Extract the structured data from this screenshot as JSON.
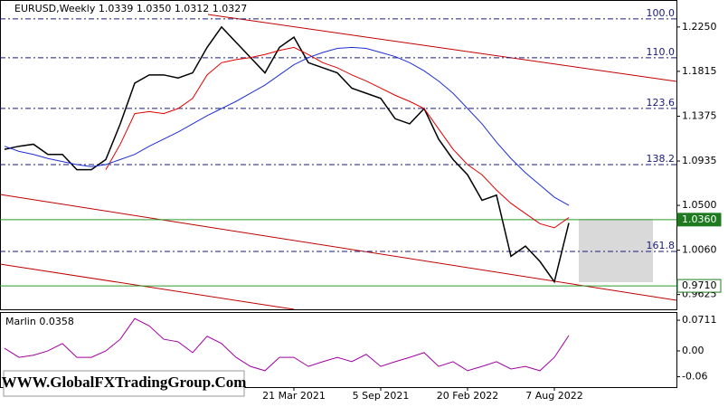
{
  "chart_data": [
    {
      "type": "line",
      "title": "EURUSD,Weekly  1.0339 1.0350 1.0312 1.0327",
      "categories": [
        null,
        null,
        null,
        null,
        null,
        null,
        null,
        null,
        null,
        null,
        null,
        null,
        null,
        null,
        null,
        null,
        null,
        null,
        null,
        null,
        "21 Mar 2021",
        null,
        null,
        null,
        null,
        null,
        "5 Sep 2021",
        null,
        null,
        null,
        null,
        null,
        "20 Feb 2022",
        null,
        null,
        null,
        null,
        null,
        "7 Aug 2022",
        null
      ],
      "series": [
        {
          "color": "#000000",
          "values": [
            1.105,
            1.108,
            1.11,
            1.1,
            1.1,
            1.085,
            1.085,
            1.095,
            1.13,
            1.17,
            1.178,
            1.178,
            1.175,
            1.18,
            1.205,
            1.225,
            1.21,
            1.195,
            1.18,
            1.205,
            1.215,
            1.19,
            1.185,
            1.18,
            1.165,
            1.16,
            1.155,
            1.135,
            1.13,
            1.145,
            1.115,
            1.095,
            1.08,
            1.055,
            1.06,
            1.0,
            1.01,
            0.995,
            0.975,
            1.0327
          ]
        },
        {
          "color": "#e00000",
          "values": [
            null,
            null,
            null,
            null,
            null,
            null,
            null,
            1.085,
            1.11,
            1.14,
            1.142,
            1.14,
            1.145,
            1.155,
            1.178,
            1.19,
            1.193,
            1.195,
            1.198,
            1.202,
            1.205,
            1.198,
            1.19,
            1.185,
            1.178,
            1.172,
            1.165,
            1.158,
            1.152,
            1.145,
            1.125,
            1.105,
            1.09,
            1.08,
            1.065,
            1.052,
            1.042,
            1.032,
            1.028,
            1.038
          ]
        },
        {
          "color": "#1f2fd0",
          "values": [
            1.108,
            1.103,
            1.1,
            1.096,
            1.093,
            1.09,
            1.088,
            1.09,
            1.095,
            1.1,
            1.108,
            1.115,
            1.122,
            1.13,
            1.138,
            1.145,
            1.152,
            1.16,
            1.168,
            1.178,
            1.188,
            1.195,
            1.2,
            1.204,
            1.205,
            1.204,
            1.2,
            1.196,
            1.19,
            1.182,
            1.172,
            1.16,
            1.145,
            1.13,
            1.112,
            1.096,
            1.082,
            1.07,
            1.058,
            1.05
          ]
        }
      ],
      "ylim": [
        0.948,
        1.2515
      ],
      "yticks": [
        {
          "value": 1.225,
          "label": "1.2250"
        },
        {
          "value": 1.1815,
          "label": "1.1815"
        },
        {
          "value": 1.1375,
          "label": "1.1375"
        },
        {
          "value": 1.0935,
          "label": "1.0935"
        },
        {
          "value": 1.05,
          "label": "1.0500"
        },
        {
          "value": 1.006,
          "label": "1.0060"
        },
        {
          "value": 0.9625,
          "label": "0.9625"
        }
      ],
      "fib_levels": [
        {
          "value": 1.233,
          "label": "100.0"
        },
        {
          "value": 1.1948,
          "label": "110.0"
        },
        {
          "value": 1.1451,
          "label": "123.6"
        },
        {
          "value": 1.09,
          "label": "138.2"
        },
        {
          "value": 1.0048,
          "label": "161.8"
        }
      ],
      "price_lines": [
        {
          "value": 1.036,
          "label": "1.0360"
        },
        {
          "value": 0.971,
          "label": "0.9710"
        }
      ]
    },
    {
      "type": "line",
      "title": "Marlin 0.0358",
      "series": [
        {
          "color": "#a000a0",
          "values": [
            0.006,
            -0.015,
            -0.01,
            0,
            0.017,
            -0.015,
            -0.015,
            0,
            0.027,
            0.075,
            0.058,
            0.027,
            0.021,
            -0.004,
            0.034,
            0.017,
            -0.015,
            -0.036,
            -0.046,
            -0.015,
            -0.015,
            -0.036,
            -0.025,
            -0.015,
            -0.025,
            -0.008,
            -0.036,
            -0.025,
            -0.015,
            -0.004,
            -0.036,
            -0.025,
            -0.046,
            -0.036,
            -0.025,
            -0.042,
            -0.036,
            -0.046,
            -0.015,
            0.0358
          ]
        }
      ],
      "ylim": [
        -0.084,
        0.088
      ],
      "yticks": [
        0.0711,
        {
          "value": 0,
          "label": "0.00"
        },
        {
          "value": -0.06,
          "label": "-0.06"
        }
      ]
    }
  ],
  "watermark": "WWW.GlobalFXTradingGroup.Com"
}
